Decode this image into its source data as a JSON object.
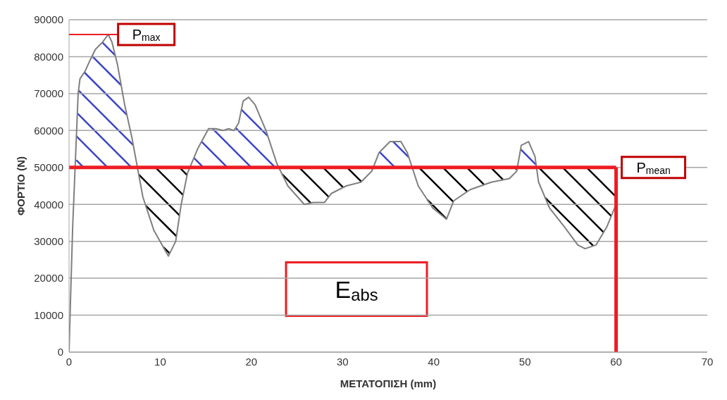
{
  "chart_data": {
    "type": "line",
    "xlabel": "ΜΕΤΑΤΟΠΙΣΗ (mm)",
    "ylabel": "ΦΟΡΤΙΟ (N)",
    "x": [
      0,
      0.16,
      0.4,
      0.6,
      0.8,
      1,
      1.2,
      1.75,
      2.3,
      2.9,
      3.7,
      4.3,
      4.7,
      5.3,
      6.1,
      6.9,
      7.5,
      8.1,
      9.3,
      10.9,
      11.7,
      12.3,
      13,
      14.1,
      15.3,
      16.1,
      16.9,
      17.5,
      18.1,
      18.6,
      19.1,
      19.7,
      20.4,
      21.6,
      22.8,
      24,
      25.8,
      26.8,
      28,
      28.8,
      30.4,
      32,
      33.2,
      34,
      35.2,
      36.4,
      37.1,
      38.3,
      39.9,
      41.4,
      42.2,
      44,
      46.3,
      48.3,
      49.1,
      49.6,
      50.4,
      51.1,
      51.5,
      52.7,
      54.3,
      55.8,
      56.6,
      57.8,
      59,
      60
    ],
    "series": [
      {
        "color": "#7f7f7f",
        "values": [
          0,
          14000,
          34000,
          46000,
          58000,
          70000,
          74000,
          76000,
          79000,
          82000,
          84000,
          86000,
          84000,
          78000,
          67000,
          58000,
          50000,
          42000,
          33000,
          26000,
          30000,
          40000,
          48500,
          55000,
          60500,
          60500,
          60000,
          60500,
          60000,
          62000,
          68000,
          69000,
          67000,
          60000,
          51000,
          45000,
          40000,
          40500,
          40500,
          43000,
          45000,
          46000,
          49000,
          54000,
          57000,
          57000,
          54000,
          45000,
          39000,
          36000,
          41000,
          44000,
          46000,
          47000,
          49000,
          56000,
          57000,
          53000,
          46000,
          39000,
          34000,
          29000,
          28000,
          29000,
          34000,
          40000
        ]
      }
    ],
    "xlim": [
      0,
      70
    ],
    "xticks": [
      0,
      10,
      20,
      30,
      40,
      50,
      60,
      70
    ],
    "ylim": [
      0,
      90000
    ],
    "yticks": [
      0,
      10000,
      20000,
      30000,
      40000,
      50000,
      60000,
      70000,
      80000,
      90000
    ],
    "grid": "y",
    "legend": false,
    "marker": "none",
    "line_style": "solid",
    "ref_lines": [
      {
        "axis": "y",
        "value": 50000,
        "label": "P$_{mean}$",
        "color": "#ee1c24"
      },
      {
        "axis": "x",
        "value": 60,
        "color": "#ee1c24"
      }
    ],
    "annotations": [
      {
        "text": "P$_{max}$",
        "x": 4.3,
        "y": 86000
      },
      "E$_{abs}$"
    ]
  }
}
